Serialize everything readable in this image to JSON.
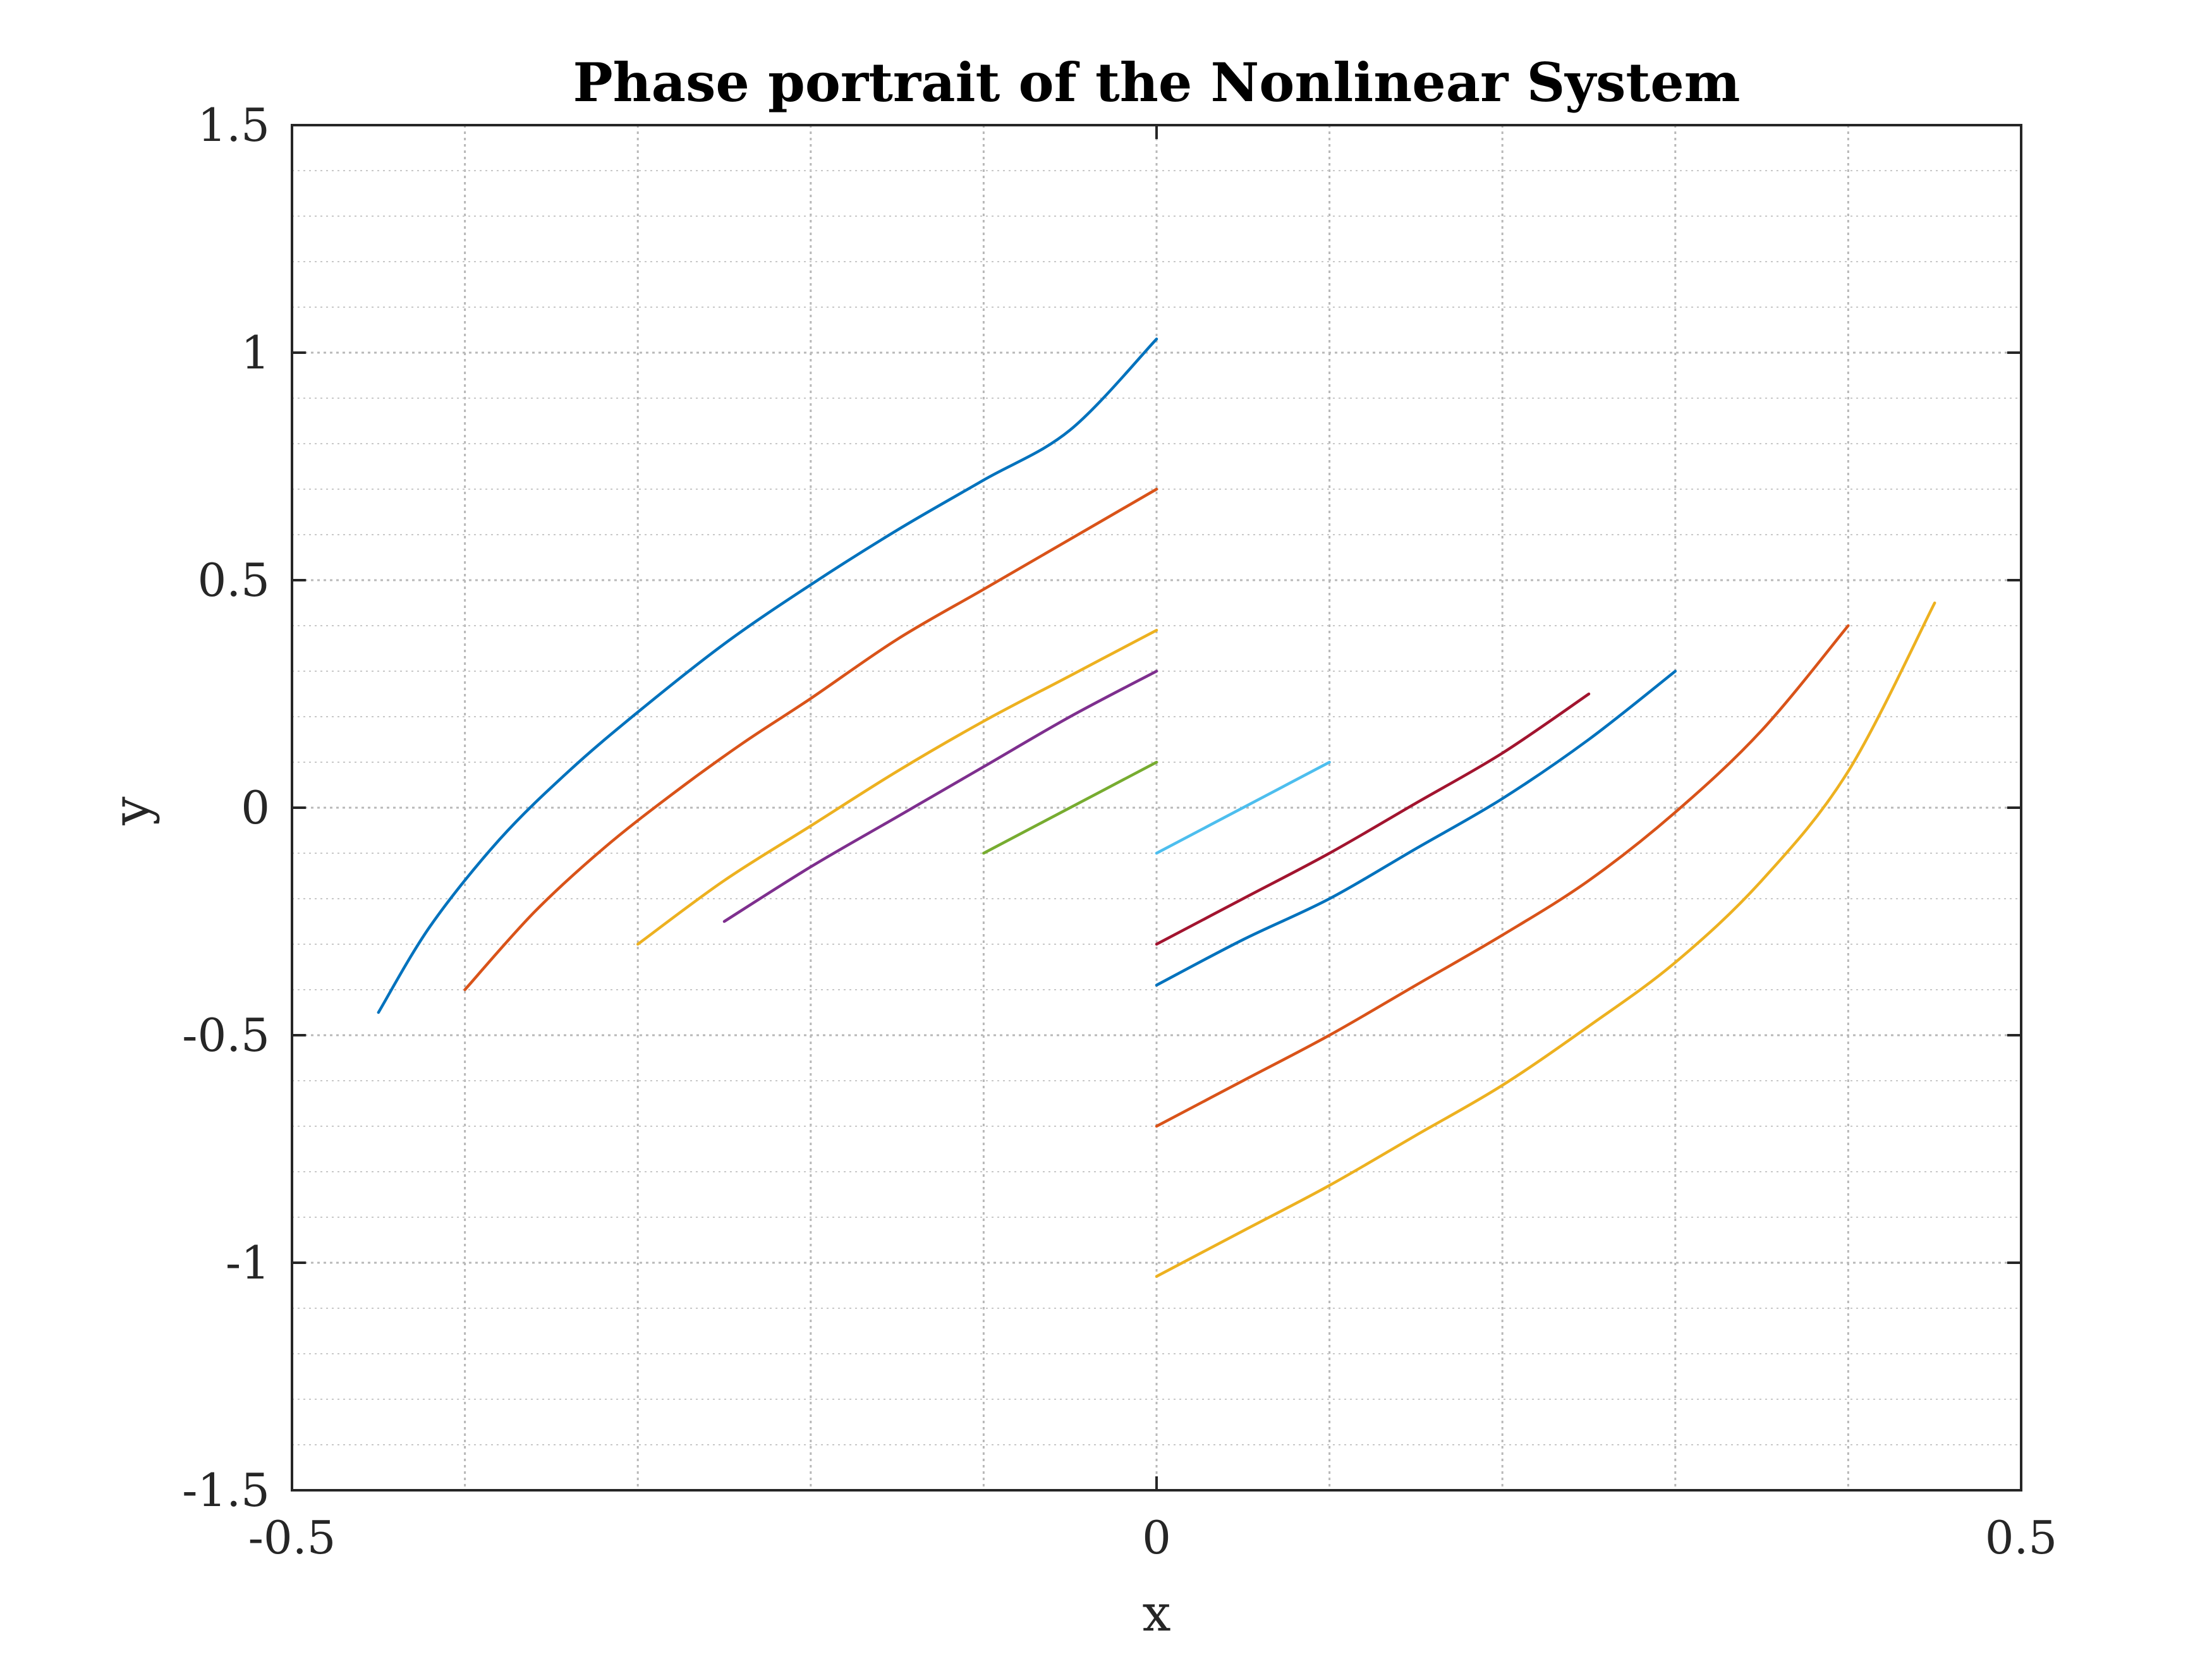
{
  "chart_data": {
    "type": "line",
    "title": "Phase portrait of the Nonlinear System",
    "xlabel": "x",
    "ylabel": "y",
    "xlim": [
      -0.5,
      0.5
    ],
    "ylim": [
      -1.5,
      1.5
    ],
    "xticks": [
      "-0.5",
      "0",
      "0.5"
    ],
    "yticks": [
      "1.5",
      "1",
      "0.5",
      "0",
      "-0.5",
      "-1",
      "-1.5"
    ],
    "grid": "on",
    "minor_grid": "on",
    "series": [
      {
        "color": "#0072BD",
        "x": [
          -0.45,
          -0.42,
          -0.38,
          -0.34,
          -0.3,
          -0.25,
          -0.2,
          -0.15,
          -0.1,
          -0.05,
          0
        ],
        "y": [
          -0.45,
          -0.26,
          -0.07,
          0.08,
          0.21,
          0.36,
          0.49,
          0.61,
          0.72,
          0.83,
          1.03
        ]
      },
      {
        "color": "#D95319",
        "x": [
          -0.4,
          -0.36,
          -0.32,
          -0.28,
          -0.24,
          -0.2,
          -0.15,
          -0.1,
          -0.05,
          0
        ],
        "y": [
          -0.4,
          -0.23,
          -0.09,
          0.03,
          0.14,
          0.24,
          0.37,
          0.48,
          0.59,
          0.7
        ]
      },
      {
        "color": "#EDB120",
        "x": [
          -0.3,
          -0.25,
          -0.2,
          -0.15,
          -0.1,
          -0.05,
          0
        ],
        "y": [
          -0.3,
          -0.16,
          -0.04,
          0.08,
          0.19,
          0.29,
          0.39
        ]
      },
      {
        "color": "#7E2F8E",
        "x": [
          -0.25,
          -0.2,
          -0.15,
          -0.1,
          -0.05,
          0
        ],
        "y": [
          -0.25,
          -0.13,
          -0.02,
          0.09,
          0.2,
          0.3
        ]
      },
      {
        "color": "#77AC30",
        "x": [
          -0.1,
          -0.05,
          0
        ],
        "y": [
          -0.1,
          0.0,
          0.1
        ]
      },
      {
        "color": "#4DBEEE",
        "x": [
          0,
          0.05,
          0.1
        ],
        "y": [
          -0.1,
          0.0,
          0.1
        ]
      },
      {
        "color": "#A2142F",
        "x": [
          0,
          0.05,
          0.1,
          0.15,
          0.2,
          0.25
        ],
        "y": [
          -0.3,
          -0.2,
          -0.1,
          0.01,
          0.12,
          0.25
        ]
      },
      {
        "color": "#0072BD",
        "x": [
          0,
          0.05,
          0.1,
          0.15,
          0.2,
          0.25,
          0.3
        ],
        "y": [
          -0.39,
          -0.29,
          -0.2,
          -0.09,
          0.02,
          0.15,
          0.3
        ]
      },
      {
        "color": "#D95319",
        "x": [
          0,
          0.05,
          0.1,
          0.15,
          0.2,
          0.25,
          0.3,
          0.35,
          0.4
        ],
        "y": [
          -0.7,
          -0.6,
          -0.5,
          -0.39,
          -0.28,
          -0.16,
          -0.01,
          0.17,
          0.4
        ]
      },
      {
        "color": "#EDB120",
        "x": [
          0,
          0.05,
          0.1,
          0.15,
          0.2,
          0.25,
          0.3,
          0.35,
          0.4,
          0.45
        ],
        "y": [
          -1.03,
          -0.93,
          -0.83,
          -0.72,
          -0.61,
          -0.48,
          -0.34,
          -0.16,
          0.08,
          0.45
        ]
      }
    ]
  }
}
